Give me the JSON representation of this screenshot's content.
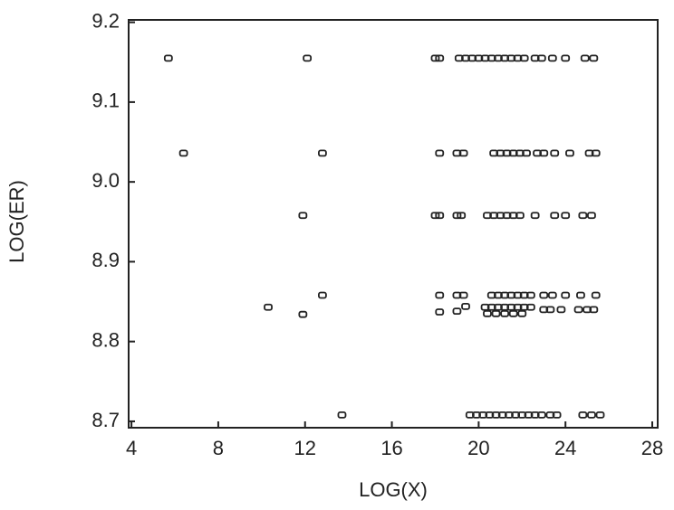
{
  "chart_data": {
    "type": "scatter",
    "xlabel": "LOG(X)",
    "ylabel": "LOG(ER)",
    "x": [
      5.7,
      12.1,
      18.0,
      18.2,
      19.1,
      19.4,
      19.7,
      20.0,
      20.3,
      20.6,
      20.9,
      21.2,
      21.5,
      21.8,
      22.1,
      22.6,
      22.9,
      23.4,
      24.0,
      24.9,
      25.3,
      6.4,
      12.8,
      18.2,
      19.0,
      19.3,
      20.7,
      21.0,
      21.3,
      21.6,
      21.9,
      22.2,
      22.7,
      23.0,
      23.5,
      24.2,
      25.1,
      25.4,
      11.9,
      18.0,
      18.2,
      19.0,
      19.2,
      20.4,
      20.7,
      21.0,
      21.3,
      21.6,
      21.9,
      22.6,
      23.5,
      24.0,
      24.8,
      25.2,
      12.8,
      18.2,
      19.0,
      19.3,
      20.6,
      20.9,
      21.2,
      21.5,
      21.8,
      22.1,
      22.4,
      23.0,
      23.4,
      24.0,
      24.7,
      25.4,
      10.3,
      11.9,
      18.2,
      19.0,
      19.4,
      20.3,
      20.6,
      20.9,
      21.2,
      21.5,
      21.8,
      22.1,
      22.4,
      20.4,
      20.8,
      21.2,
      21.6,
      22.0,
      23.0,
      23.3,
      23.8,
      24.6,
      25.0,
      25.3,
      13.7,
      19.6,
      19.9,
      20.2,
      20.5,
      20.8,
      21.1,
      21.4,
      21.7,
      22.0,
      22.3,
      22.6,
      22.9,
      23.3,
      23.6,
      24.8,
      25.2,
      25.6
    ],
    "y": [
      9.155,
      9.155,
      9.155,
      9.155,
      9.155,
      9.155,
      9.155,
      9.155,
      9.155,
      9.155,
      9.155,
      9.155,
      9.155,
      9.155,
      9.155,
      9.155,
      9.155,
      9.155,
      9.155,
      9.155,
      9.155,
      9.036,
      9.036,
      9.036,
      9.036,
      9.036,
      9.036,
      9.036,
      9.036,
      9.036,
      9.036,
      9.036,
      9.036,
      9.036,
      9.036,
      9.036,
      9.036,
      9.036,
      8.958,
      8.958,
      8.958,
      8.958,
      8.958,
      8.958,
      8.958,
      8.958,
      8.958,
      8.958,
      8.958,
      8.958,
      8.958,
      8.958,
      8.958,
      8.958,
      8.858,
      8.858,
      8.858,
      8.858,
      8.858,
      8.858,
      8.858,
      8.858,
      8.858,
      8.858,
      8.858,
      8.858,
      8.858,
      8.858,
      8.858,
      8.858,
      8.843,
      8.834,
      8.837,
      8.838,
      8.844,
      8.843,
      8.843,
      8.843,
      8.843,
      8.843,
      8.843,
      8.843,
      8.843,
      8.835,
      8.835,
      8.835,
      8.835,
      8.835,
      8.84,
      8.84,
      8.84,
      8.84,
      8.84,
      8.84,
      8.708,
      8.708,
      8.708,
      8.708,
      8.708,
      8.708,
      8.708,
      8.708,
      8.708,
      8.708,
      8.708,
      8.708,
      8.708,
      8.708,
      8.708,
      8.708,
      8.708,
      8.708
    ],
    "color": "#222222",
    "xlim": [
      3.87,
      28.25
    ],
    "ylim": [
      8.692,
      9.203
    ],
    "xticks": [
      4,
      8,
      12,
      16,
      20,
      24,
      28
    ],
    "yticks": [
      8.7,
      8.8,
      8.9,
      {
        "value": 9,
        "label": "9.0"
      },
      9.1,
      9.2
    ]
  }
}
